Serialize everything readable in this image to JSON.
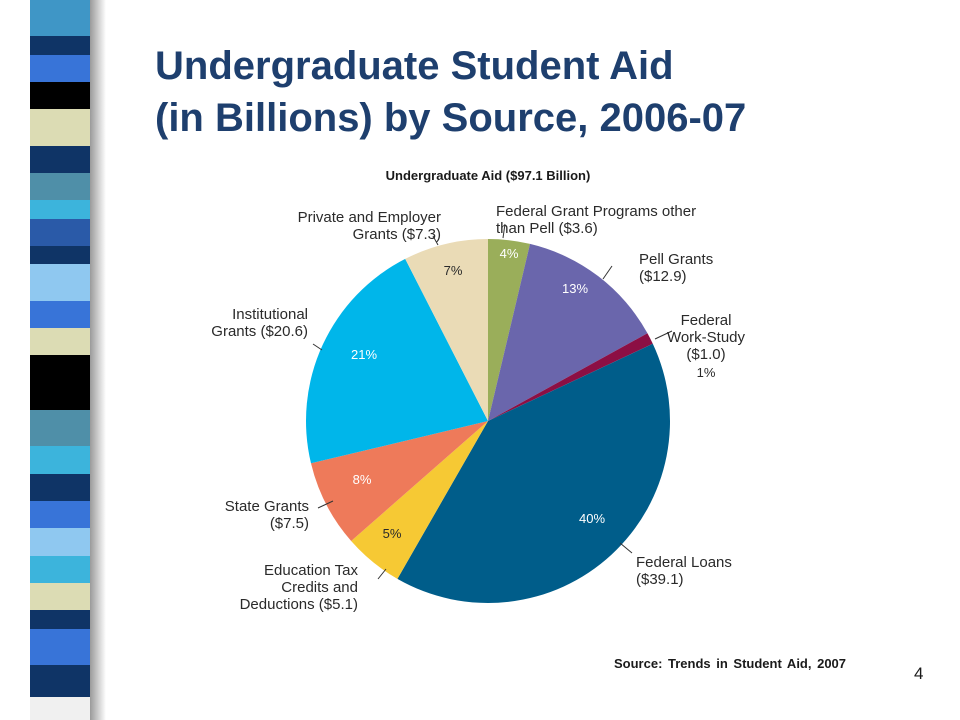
{
  "slide": {
    "title_line1": "Undergraduate Student Aid",
    "title_line2": "(in Billions) by Source, 2006-07",
    "source": "Source: Trends in Student Aid, 2007",
    "page_number": "4"
  },
  "stripe_colors": [
    "#3f96c6",
    "#0f3466",
    "#3874d8",
    "#000000",
    "#dcdcb4",
    "#0f3466",
    "#4f8fa8",
    "#3cb4dc",
    "#2a5aa8",
    "#0f3466",
    "#8fc8f0",
    "#3874d8",
    "#dcdcb4",
    "#000000",
    "#000000",
    "#4f8fa8",
    "#3cb4dc",
    "#0f3466",
    "#3874d8",
    "#8fc8f0",
    "#3cb4dc",
    "#dcdcb4",
    "#0f3466",
    "#3874d8",
    "#0f3466",
    "#f0f0f0"
  ],
  "stripe_weights": [
    40,
    20,
    30,
    30,
    40,
    30,
    30,
    20,
    30,
    20,
    40,
    30,
    30,
    30,
    30,
    40,
    30,
    30,
    30,
    30,
    30,
    30,
    20,
    40,
    35,
    25
  ],
  "chart_data": {
    "type": "pie",
    "title": "Undergraduate Aid ($97.1 Billion)",
    "unit": "billions of dollars",
    "slices": [
      {
        "name": "Federal Grant Programs other than Pell",
        "label_lines": [
          "Federal Grant Programs other",
          "than Pell ($3.6)"
        ],
        "value": 3.6,
        "percent": "4%",
        "color": "#9aae5a",
        "pct_color": "#ffffff"
      },
      {
        "name": "Pell Grants",
        "label_lines": [
          "Pell Grants",
          "($12.9)"
        ],
        "value": 12.9,
        "percent": "13%",
        "color": "#6a66ac",
        "pct_color": "#ffffff"
      },
      {
        "name": "Federal Work-Study",
        "label_lines": [
          "Federal",
          "Work-Study",
          "($1.0)"
        ],
        "value": 1.0,
        "percent": "1%",
        "color": "#8c0f44",
        "pct_color": "#2a2a2a"
      },
      {
        "name": "Federal Loans",
        "label_lines": [
          "Federal Loans",
          "($39.1)"
        ],
        "value": 39.1,
        "percent": "40%",
        "color": "#005d8a",
        "pct_color": "#ffffff"
      },
      {
        "name": "Education Tax Credits and Deductions",
        "label_lines": [
          "Education Tax",
          "Credits and",
          "Deductions ($5.1)"
        ],
        "value": 5.1,
        "percent": "5%",
        "color": "#f6c934",
        "pct_color": "#2a2a2a"
      },
      {
        "name": "State Grants",
        "label_lines": [
          "State Grants",
          "($7.5)"
        ],
        "value": 7.5,
        "percent": "8%",
        "color": "#ee7a5a",
        "pct_color": "#ffffff"
      },
      {
        "name": "Institutional Grants",
        "label_lines": [
          "Institutional",
          "Grants ($20.6)"
        ],
        "value": 20.6,
        "percent": "21%",
        "color": "#00b6ea",
        "pct_color": "#ffffff"
      },
      {
        "name": "Private and Employer Grants",
        "label_lines": [
          "Private and Employer",
          "Grants ($7.3)"
        ],
        "value": 7.3,
        "percent": "7%",
        "color": "#eadbb6",
        "pct_color": "#2a2a2a"
      }
    ]
  }
}
